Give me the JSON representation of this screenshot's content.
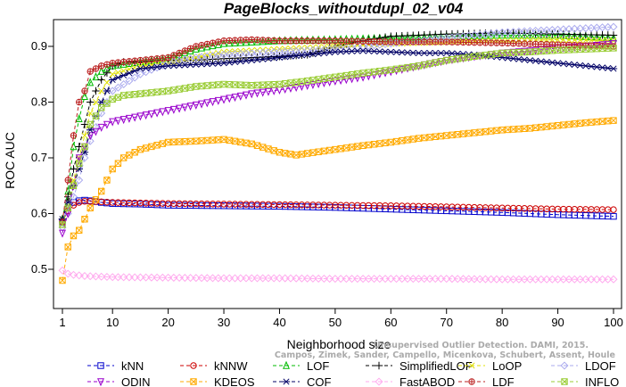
{
  "watermark": {
    "line1": "Unsupervised Outlier Detection. DAMI, 2015.",
    "line2": "Campos, Zimek, Sander, Campello, Micenkova, Schubert, Assent, Houle"
  },
  "chart_data": {
    "type": "line",
    "title": "PageBlocks_withoutdupl_02_v04",
    "xlabel": "Neighborhood size",
    "ylabel": "ROC AUC",
    "xlim": [
      1,
      100
    ],
    "ylim": [
      0.45,
      0.95
    ],
    "xticks": [
      1,
      10,
      20,
      30,
      40,
      50,
      60,
      70,
      80,
      90,
      100
    ],
    "yticks": [
      0.5,
      0.6,
      0.7,
      0.8,
      0.9
    ],
    "legend_position": "bottom",
    "series": [
      {
        "name": "kNN",
        "color": "#0000cc",
        "marker": "square",
        "points": [
          [
            1,
            0.585
          ],
          [
            2,
            0.61
          ],
          [
            3,
            0.62
          ],
          [
            4,
            0.623
          ],
          [
            5,
            0.624
          ],
          [
            6,
            0.623
          ],
          [
            8,
            0.62
          ],
          [
            10,
            0.618
          ],
          [
            15,
            0.617
          ],
          [
            20,
            0.615
          ],
          [
            30,
            0.614
          ],
          [
            40,
            0.613
          ],
          [
            50,
            0.611
          ],
          [
            60,
            0.608
          ],
          [
            70,
            0.605
          ],
          [
            80,
            0.602
          ],
          [
            90,
            0.598
          ],
          [
            100,
            0.595
          ]
        ]
      },
      {
        "name": "kNNW",
        "color": "#cc0000",
        "marker": "circle",
        "points": [
          [
            1,
            0.585
          ],
          [
            2,
            0.605
          ],
          [
            3,
            0.615
          ],
          [
            4,
            0.62
          ],
          [
            5,
            0.622
          ],
          [
            6,
            0.622
          ],
          [
            8,
            0.621
          ],
          [
            10,
            0.62
          ],
          [
            15,
            0.619
          ],
          [
            20,
            0.618
          ],
          [
            30,
            0.617
          ],
          [
            40,
            0.616
          ],
          [
            50,
            0.615
          ],
          [
            60,
            0.614
          ],
          [
            70,
            0.612
          ],
          [
            80,
            0.61
          ],
          [
            90,
            0.608
          ],
          [
            100,
            0.607
          ]
        ]
      },
      {
        "name": "LOF",
        "color": "#00bb00",
        "marker": "triangle",
        "points": [
          [
            1,
            0.59
          ],
          [
            2,
            0.64
          ],
          [
            3,
            0.72
          ],
          [
            4,
            0.77
          ],
          [
            5,
            0.81
          ],
          [
            6,
            0.835
          ],
          [
            8,
            0.855
          ],
          [
            10,
            0.865
          ],
          [
            15,
            0.872
          ],
          [
            20,
            0.878
          ],
          [
            25,
            0.895
          ],
          [
            30,
            0.905
          ],
          [
            40,
            0.91
          ],
          [
            50,
            0.912
          ],
          [
            60,
            0.915
          ],
          [
            70,
            0.918
          ],
          [
            80,
            0.92
          ],
          [
            90,
            0.92
          ],
          [
            100,
            0.915
          ]
        ]
      },
      {
        "name": "SimplifiedLOF",
        "color": "#000000",
        "marker": "plus",
        "points": [
          [
            1,
            0.59
          ],
          [
            2,
            0.63
          ],
          [
            3,
            0.68
          ],
          [
            4,
            0.72
          ],
          [
            5,
            0.76
          ],
          [
            6,
            0.8
          ],
          [
            8,
            0.84
          ],
          [
            10,
            0.865
          ],
          [
            12,
            0.872
          ],
          [
            15,
            0.872
          ],
          [
            20,
            0.875
          ],
          [
            25,
            0.875
          ],
          [
            30,
            0.878
          ],
          [
            35,
            0.88
          ],
          [
            40,
            0.882
          ],
          [
            45,
            0.885
          ],
          [
            50,
            0.9
          ],
          [
            55,
            0.91
          ],
          [
            60,
            0.918
          ],
          [
            70,
            0.922
          ],
          [
            80,
            0.924
          ],
          [
            90,
            0.922
          ],
          [
            100,
            0.92
          ]
        ]
      },
      {
        "name": "LoOP",
        "color": "#e0e000",
        "marker": "x",
        "points": [
          [
            1,
            0.59
          ],
          [
            2,
            0.62
          ],
          [
            3,
            0.66
          ],
          [
            4,
            0.7
          ],
          [
            5,
            0.74
          ],
          [
            6,
            0.78
          ],
          [
            8,
            0.82
          ],
          [
            10,
            0.85
          ],
          [
            15,
            0.865
          ],
          [
            20,
            0.87
          ],
          [
            25,
            0.88
          ],
          [
            30,
            0.89
          ],
          [
            40,
            0.895
          ],
          [
            50,
            0.9
          ],
          [
            60,
            0.905
          ],
          [
            70,
            0.908
          ],
          [
            80,
            0.91
          ],
          [
            90,
            0.912
          ],
          [
            100,
            0.91
          ]
        ]
      },
      {
        "name": "LDOF",
        "color": "#aaaaee",
        "marker": "diamond",
        "points": [
          [
            1,
            0.575
          ],
          [
            2,
            0.6
          ],
          [
            3,
            0.63
          ],
          [
            4,
            0.66
          ],
          [
            5,
            0.7
          ],
          [
            6,
            0.73
          ],
          [
            8,
            0.78
          ],
          [
            10,
            0.82
          ],
          [
            15,
            0.85
          ],
          [
            20,
            0.87
          ],
          [
            25,
            0.88
          ],
          [
            30,
            0.885
          ],
          [
            40,
            0.89
          ],
          [
            50,
            0.895
          ],
          [
            60,
            0.905
          ],
          [
            70,
            0.915
          ],
          [
            80,
            0.925
          ],
          [
            90,
            0.93
          ],
          [
            100,
            0.935
          ]
        ]
      },
      {
        "name": "ODIN",
        "color": "#9900cc",
        "marker": "triangle-down",
        "points": [
          [
            1,
            0.565
          ],
          [
            2,
            0.6
          ],
          [
            3,
            0.65
          ],
          [
            4,
            0.7
          ],
          [
            5,
            0.72
          ],
          [
            6,
            0.74
          ],
          [
            8,
            0.755
          ],
          [
            10,
            0.765
          ],
          [
            15,
            0.775
          ],
          [
            20,
            0.785
          ],
          [
            25,
            0.795
          ],
          [
            30,
            0.805
          ],
          [
            35,
            0.815
          ],
          [
            40,
            0.822
          ],
          [
            45,
            0.83
          ],
          [
            50,
            0.838
          ],
          [
            55,
            0.845
          ],
          [
            60,
            0.855
          ],
          [
            65,
            0.865
          ],
          [
            70,
            0.875
          ],
          [
            75,
            0.882
          ],
          [
            80,
            0.888
          ],
          [
            85,
            0.892
          ],
          [
            90,
            0.897
          ],
          [
            95,
            0.9
          ],
          [
            100,
            0.905
          ]
        ]
      },
      {
        "name": "KDEOS",
        "color": "#ffaa00",
        "marker": "square-x",
        "points": [
          [
            1,
            0.48
          ],
          [
            2,
            0.54
          ],
          [
            3,
            0.56
          ],
          [
            4,
            0.57
          ],
          [
            5,
            0.59
          ],
          [
            6,
            0.61
          ],
          [
            8,
            0.64
          ],
          [
            10,
            0.68
          ],
          [
            12,
            0.7
          ],
          [
            15,
            0.715
          ],
          [
            20,
            0.728
          ],
          [
            25,
            0.73
          ],
          [
            30,
            0.733
          ],
          [
            35,
            0.725
          ],
          [
            40,
            0.71
          ],
          [
            43,
            0.705
          ],
          [
            45,
            0.708
          ],
          [
            50,
            0.715
          ],
          [
            55,
            0.722
          ],
          [
            60,
            0.728
          ],
          [
            65,
            0.735
          ],
          [
            70,
            0.74
          ],
          [
            75,
            0.745
          ],
          [
            80,
            0.75
          ],
          [
            85,
            0.753
          ],
          [
            90,
            0.758
          ],
          [
            95,
            0.763
          ],
          [
            100,
            0.767
          ]
        ]
      },
      {
        "name": "COF",
        "color": "#000066",
        "marker": "star",
        "points": [
          [
            1,
            0.59
          ],
          [
            2,
            0.62
          ],
          [
            3,
            0.65
          ],
          [
            4,
            0.68
          ],
          [
            5,
            0.71
          ],
          [
            6,
            0.75
          ],
          [
            8,
            0.8
          ],
          [
            10,
            0.84
          ],
          [
            15,
            0.86
          ],
          [
            20,
            0.865
          ],
          [
            30,
            0.87
          ],
          [
            40,
            0.88
          ],
          [
            50,
            0.89
          ],
          [
            55,
            0.892
          ],
          [
            60,
            0.89
          ],
          [
            65,
            0.888
          ],
          [
            70,
            0.888
          ],
          [
            75,
            0.885
          ],
          [
            80,
            0.88
          ],
          [
            85,
            0.875
          ],
          [
            90,
            0.87
          ],
          [
            95,
            0.865
          ],
          [
            100,
            0.86
          ]
        ]
      },
      {
        "name": "FastABOD",
        "color": "#ffaaee",
        "marker": "diamond",
        "points": [
          [
            1,
            0.498
          ],
          [
            2,
            0.492
          ],
          [
            3,
            0.49
          ],
          [
            5,
            0.488
          ],
          [
            10,
            0.486
          ],
          [
            20,
            0.485
          ],
          [
            30,
            0.484
          ],
          [
            40,
            0.484
          ],
          [
            50,
            0.483
          ],
          [
            60,
            0.483
          ],
          [
            70,
            0.483
          ],
          [
            80,
            0.482
          ],
          [
            90,
            0.482
          ],
          [
            100,
            0.482
          ]
        ]
      },
      {
        "name": "LDF",
        "color": "#bb2222",
        "marker": "circle-plus",
        "points": [
          [
            1,
            0.585
          ],
          [
            2,
            0.66
          ],
          [
            3,
            0.74
          ],
          [
            4,
            0.8
          ],
          [
            5,
            0.82
          ],
          [
            6,
            0.855
          ],
          [
            8,
            0.865
          ],
          [
            10,
            0.87
          ],
          [
            15,
            0.875
          ],
          [
            20,
            0.88
          ],
          [
            25,
            0.9
          ],
          [
            30,
            0.91
          ],
          [
            35,
            0.912
          ],
          [
            40,
            0.91
          ],
          [
            50,
            0.91
          ],
          [
            60,
            0.908
          ],
          [
            70,
            0.908
          ],
          [
            80,
            0.906
          ],
          [
            90,
            0.903
          ],
          [
            100,
            0.9
          ]
        ]
      },
      {
        "name": "INFLO",
        "color": "#99cc33",
        "marker": "square-x",
        "points": [
          [
            1,
            0.58
          ],
          [
            2,
            0.61
          ],
          [
            3,
            0.65
          ],
          [
            4,
            0.69
          ],
          [
            5,
            0.72
          ],
          [
            6,
            0.76
          ],
          [
            8,
            0.79
          ],
          [
            10,
            0.805
          ],
          [
            12,
            0.812
          ],
          [
            15,
            0.815
          ],
          [
            20,
            0.82
          ],
          [
            25,
            0.828
          ],
          [
            30,
            0.832
          ],
          [
            35,
            0.83
          ],
          [
            40,
            0.832
          ],
          [
            45,
            0.838
          ],
          [
            50,
            0.845
          ],
          [
            55,
            0.852
          ],
          [
            60,
            0.858
          ],
          [
            65,
            0.865
          ],
          [
            70,
            0.875
          ],
          [
            75,
            0.882
          ],
          [
            80,
            0.888
          ],
          [
            85,
            0.89
          ],
          [
            90,
            0.893
          ],
          [
            95,
            0.895
          ],
          [
            100,
            0.897
          ]
        ]
      }
    ]
  }
}
